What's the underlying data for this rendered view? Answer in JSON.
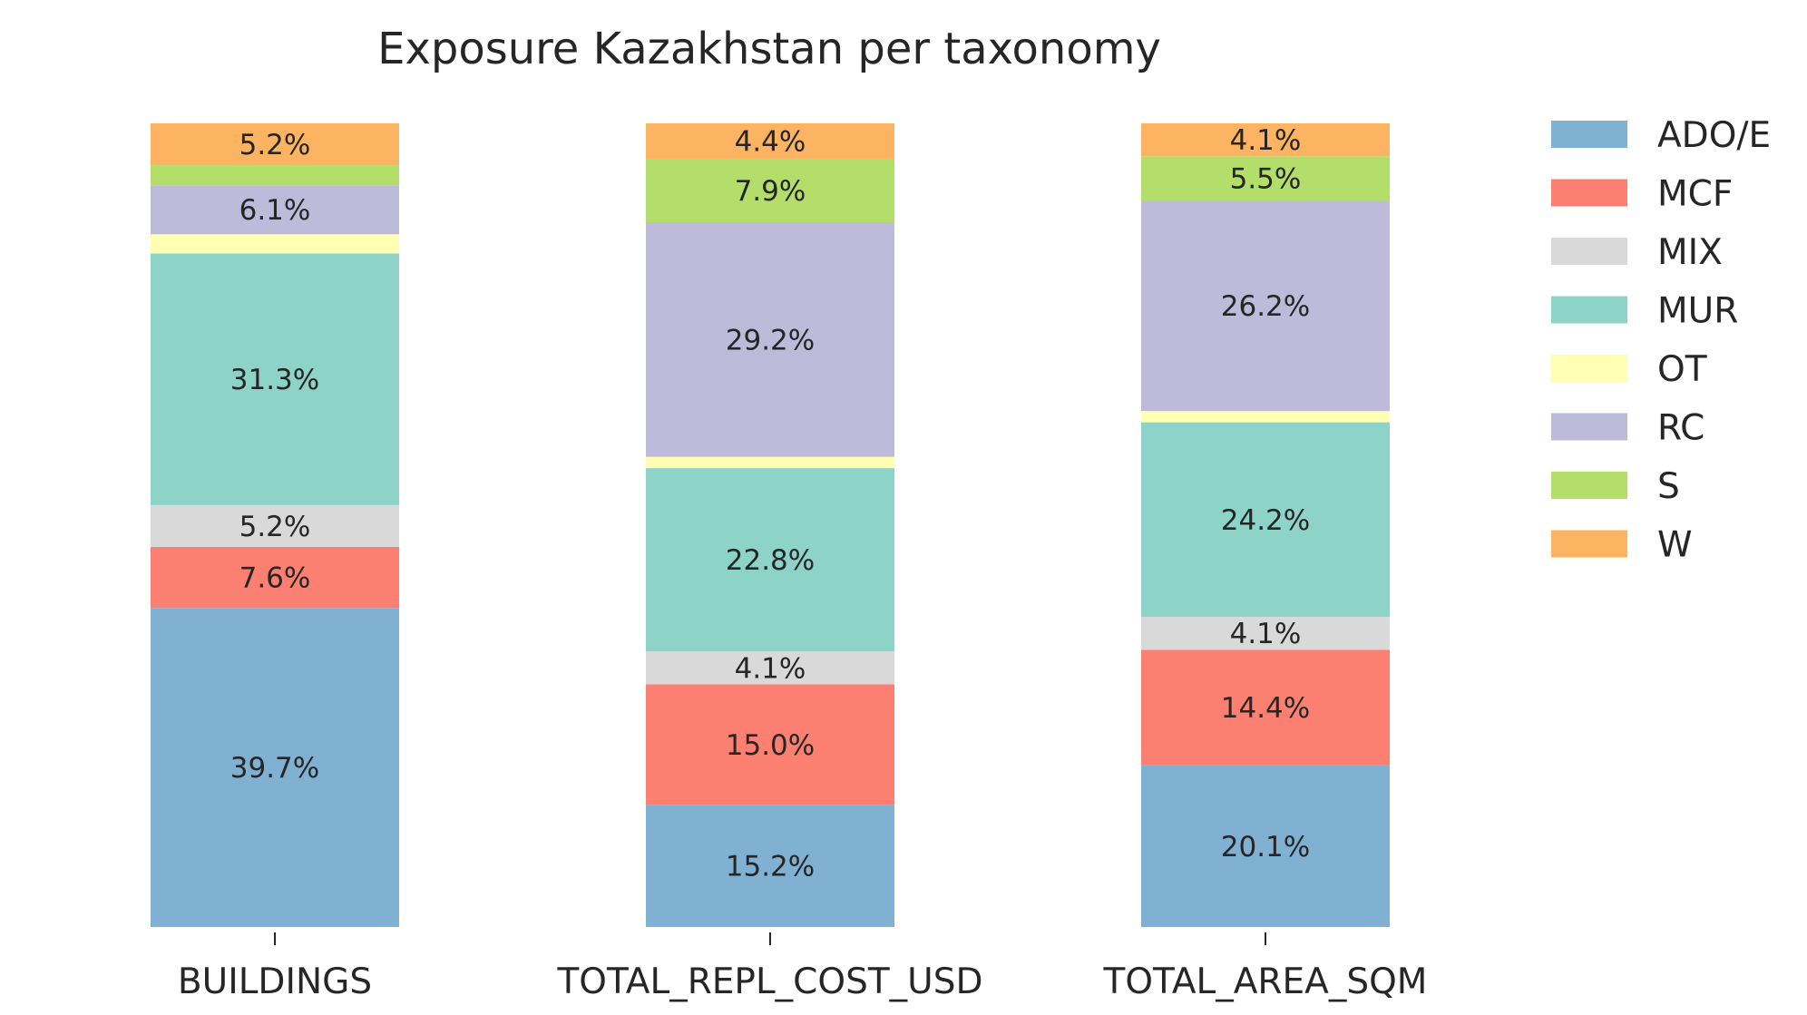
{
  "chart_data": {
    "type": "bar",
    "stacked": true,
    "normalized": true,
    "title": "Exposure Kazakhstan per taxonomy",
    "categories": [
      "BUILDINGS",
      "TOTAL_REPL_COST_USD",
      "TOTAL_AREA_SQM"
    ],
    "ylim": [
      0,
      100
    ],
    "grid": false,
    "legend_position": "right",
    "series": [
      {
        "name": "ADO/E",
        "color": "#80b1d3",
        "values": [
          39.7,
          15.2,
          20.1
        ],
        "labels": [
          "39.7%",
          "15.2%",
          "20.1%"
        ]
      },
      {
        "name": "MCF",
        "color": "#fb8072",
        "values": [
          7.6,
          15.0,
          14.4
        ],
        "labels": [
          "7.6%",
          "15.0%",
          "14.4%"
        ]
      },
      {
        "name": "MIX",
        "color": "#d9d9d9",
        "values": [
          5.2,
          4.1,
          4.1
        ],
        "labels": [
          "5.2%",
          "4.1%",
          "4.1%"
        ]
      },
      {
        "name": "MUR",
        "color": "#8dd3c7",
        "values": [
          31.3,
          22.8,
          24.2
        ],
        "labels": [
          "31.3%",
          "22.8%",
          "24.2%"
        ]
      },
      {
        "name": "OT",
        "color": "#ffffb3",
        "values": [
          2.4,
          1.4,
          1.4
        ],
        "labels": [
          "",
          "",
          ""
        ]
      },
      {
        "name": "RC",
        "color": "#bebada",
        "values": [
          6.1,
          29.2,
          26.2
        ],
        "labels": [
          "6.1%",
          "29.2%",
          "26.2%"
        ]
      },
      {
        "name": "S",
        "color": "#b3de69",
        "values": [
          2.5,
          7.9,
          5.5
        ],
        "labels": [
          "",
          "7.9%",
          "5.5%"
        ]
      },
      {
        "name": "W",
        "color": "#fdb462",
        "values": [
          5.2,
          4.4,
          4.1
        ],
        "labels": [
          "5.2%",
          "4.4%",
          "4.1%"
        ]
      }
    ]
  }
}
